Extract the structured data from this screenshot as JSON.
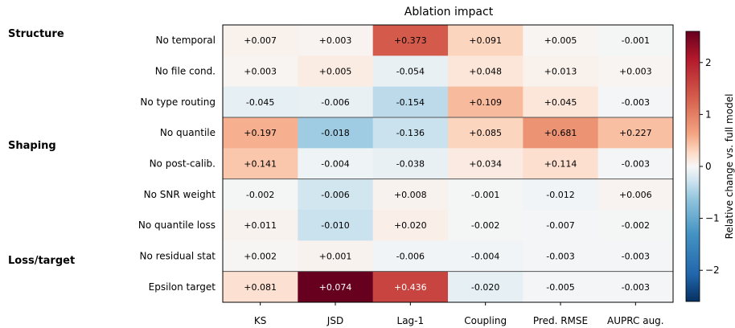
{
  "chart_data": {
    "type": "heatmap",
    "title": "Ablation impact",
    "columns": [
      "KS",
      "JSD",
      "Lag-1",
      "Coupling",
      "Pred. RMSE",
      "AUPRC aug."
    ],
    "groups": [
      {
        "label": "Structure",
        "rows": [
          0,
          1,
          2
        ]
      },
      {
        "label": "Shaping",
        "rows": [
          3,
          4
        ]
      },
      {
        "label": "Loss/target",
        "rows": [
          5,
          6,
          7,
          8
        ]
      }
    ],
    "rows": [
      {
        "label": "No temporal",
        "values": [
          "+0.007",
          "+0.003",
          "+0.373",
          "+0.091",
          "+0.005",
          "-0.001"
        ],
        "relative": [
          0.06,
          0.04,
          1.35,
          0.3,
          0.03,
          -0.02
        ]
      },
      {
        "label": "No file cond.",
        "values": [
          "+0.003",
          "+0.005",
          "-0.054",
          "+0.048",
          "+0.013",
          "+0.003"
        ],
        "relative": [
          0.03,
          0.11,
          -0.1,
          0.16,
          0.06,
          0.03
        ]
      },
      {
        "label": "No type routing",
        "values": [
          "-0.045",
          "-0.006",
          "-0.154",
          "+0.109",
          "+0.045",
          "-0.003"
        ],
        "relative": [
          -0.12,
          -0.1,
          -0.38,
          0.48,
          0.16,
          -0.03
        ]
      },
      {
        "label": "No quantile",
        "values": [
          "+0.197",
          "-0.018",
          "-0.136",
          "+0.085",
          "+0.681",
          "+0.227"
        ],
        "relative": [
          0.55,
          -0.55,
          -0.3,
          0.3,
          0.8,
          0.45
        ]
      },
      {
        "label": "No post-calib.",
        "values": [
          "+0.141",
          "-0.004",
          "-0.038",
          "+0.034",
          "+0.114",
          "-0.003"
        ],
        "relative": [
          0.4,
          -0.06,
          -0.1,
          0.12,
          0.22,
          -0.03
        ]
      },
      {
        "label": "No SNR weight",
        "values": [
          "-0.002",
          "-0.006",
          "+0.008",
          "-0.001",
          "-0.012",
          "+0.006"
        ],
        "relative": [
          -0.02,
          -0.25,
          0.05,
          -0.02,
          -0.05,
          0.04
        ]
      },
      {
        "label": "No quantile loss",
        "values": [
          "+0.011",
          "-0.010",
          "+0.020",
          "-0.002",
          "-0.007",
          "-0.002"
        ],
        "relative": [
          0.05,
          -0.3,
          0.08,
          -0.02,
          -0.03,
          -0.02
        ]
      },
      {
        "label": "No residual stat",
        "values": [
          "+0.002",
          "+0.001",
          "-0.006",
          "-0.004",
          "-0.003",
          "-0.003"
        ],
        "relative": [
          0.02,
          0.05,
          -0.04,
          -0.04,
          -0.03,
          -0.03
        ]
      },
      {
        "label": "Epsilon target",
        "values": [
          "+0.081",
          "+0.074",
          "+0.436",
          "-0.020",
          "-0.005",
          "-0.003"
        ],
        "relative": [
          0.2,
          2.6,
          1.6,
          -0.12,
          -0.03,
          -0.03
        ]
      }
    ],
    "colorbar": {
      "label": "Relative change vs. full model",
      "range": [
        -2.6,
        2.6
      ],
      "ticks": [
        2,
        1,
        0,
        -1,
        -2
      ],
      "tick_labels": [
        "2",
        "1",
        "0",
        "−1",
        "−2"
      ]
    },
    "separators_after_rows": [
      2,
      4,
      7
    ],
    "colormap": "RdBu_r"
  }
}
